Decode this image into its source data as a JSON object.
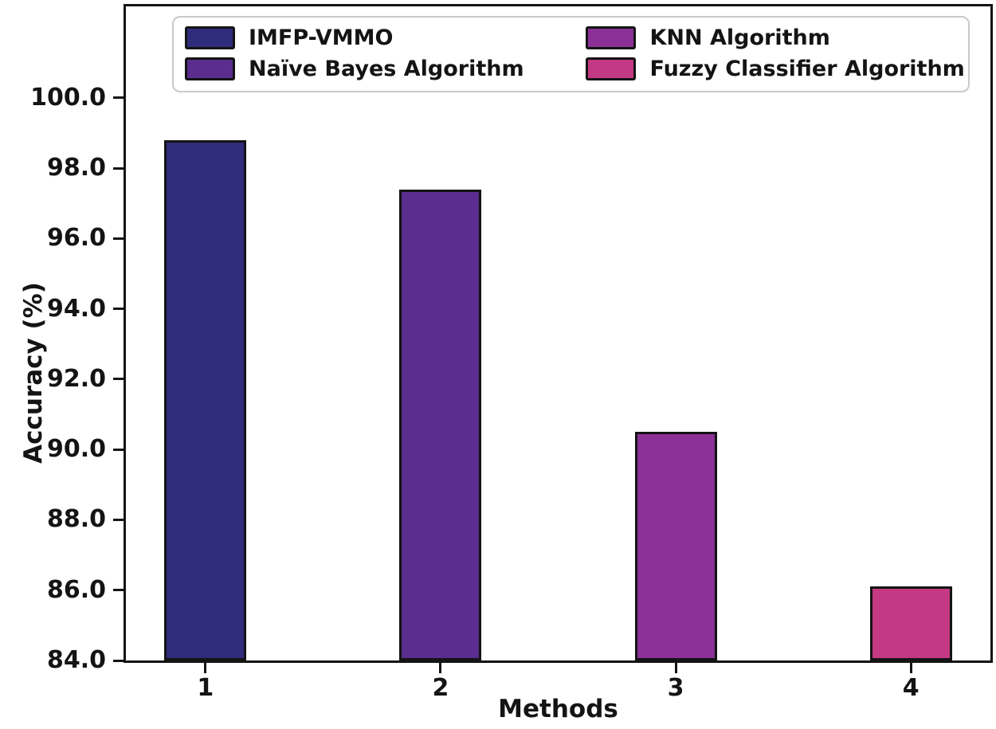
{
  "chart_data": {
    "type": "bar",
    "title": "",
    "xlabel": "Methods",
    "ylabel": "Accuracy (%)",
    "categories": [
      "1",
      "2",
      "3",
      "4"
    ],
    "series": [
      {
        "name": "IMFP-VMMO",
        "color": "#302c7c",
        "value": 98.8
      },
      {
        "name": "Naïve Bayes Algorithm",
        "color": "#5a2d8e",
        "value": 97.4
      },
      {
        "name": "KNN Algorithm",
        "color": "#8b3097",
        "value": 90.5
      },
      {
        "name": "Fuzzy Classifier Algorithm",
        "color": "#c33983",
        "value": 86.1
      }
    ],
    "values": [
      98.8,
      97.4,
      90.5,
      86.1
    ],
    "ylim": [
      84.0,
      102.6
    ],
    "yticks": [
      {
        "v": 84.0,
        "label": "84.0"
      },
      {
        "v": 86.0,
        "label": "86.0"
      },
      {
        "v": 88.0,
        "label": "88.0"
      },
      {
        "v": 90.0,
        "label": "90.0"
      },
      {
        "v": 92.0,
        "label": "92.0"
      },
      {
        "v": 94.0,
        "label": "94.0"
      },
      {
        "v": 96.0,
        "label": "96.0"
      },
      {
        "v": 98.0,
        "label": "98.0"
      },
      {
        "v": 100.0,
        "label": "100.0"
      }
    ],
    "grid": false,
    "legend_position": "upper center, 2 columns",
    "legend": [
      {
        "label": "IMFP-VMMO",
        "color": "#302c7c"
      },
      {
        "label": "Naïve Bayes Algorithm",
        "color": "#5a2d8e"
      },
      {
        "label": "KNN Algorithm",
        "color": "#8b3097"
      },
      {
        "label": "Fuzzy Classifier Algorithm",
        "color": "#c33983"
      }
    ],
    "frame_color": "#141414",
    "text_color": "#141414"
  }
}
